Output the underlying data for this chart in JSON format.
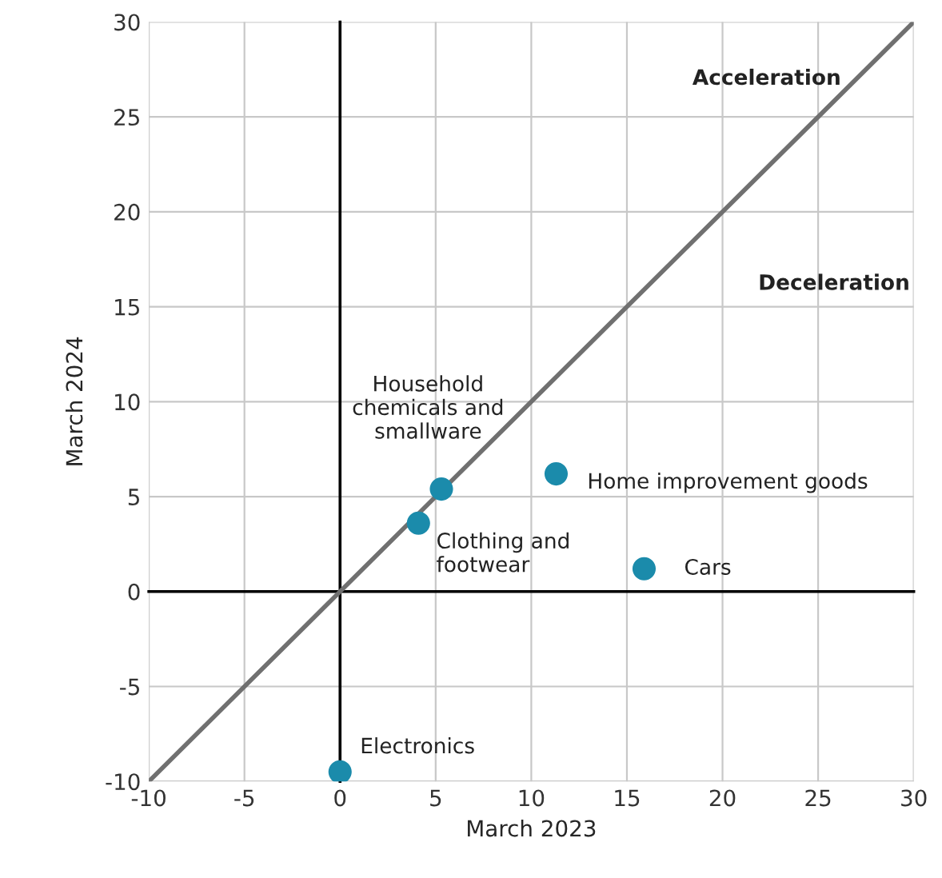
{
  "chart_data": {
    "type": "scatter",
    "xlabel": "March 2023",
    "ylabel": "March 2024",
    "xlim": [
      -10,
      30
    ],
    "ylim": [
      -10,
      30
    ],
    "xticks": [
      -10,
      -5,
      0,
      5,
      10,
      15,
      20,
      25,
      30
    ],
    "yticks": [
      -10,
      -5,
      0,
      5,
      10,
      15,
      20,
      25,
      30
    ],
    "grid": true,
    "series": [
      {
        "type": "line",
        "x": [
          -10,
          30
        ],
        "values": [
          -10,
          30
        ],
        "color": "#707070"
      },
      {
        "x": [
          0,
          4.1,
          5.3,
          11.3,
          15.9
        ],
        "values": [
          -9.5,
          3.6,
          5.4,
          6.2,
          1.2
        ],
        "color": "#1b8bab",
        "marker": "circle"
      }
    ],
    "annotations": [
      "Acceleration",
      "Deceleration",
      {
        "text": "Household\nchemicals and\nsmallware",
        "x": 5.3,
        "y": 5.4
      },
      {
        "text": "Clothing and\nfootwear",
        "x": 4.1,
        "y": 3.6
      },
      {
        "text": "Home improvement goods",
        "x": 11.3,
        "y": 6.2
      },
      {
        "text": "Cars",
        "x": 15.9,
        "y": 1.2
      },
      {
        "text": "Electronics",
        "x": 0,
        "y": -9.5
      }
    ]
  }
}
